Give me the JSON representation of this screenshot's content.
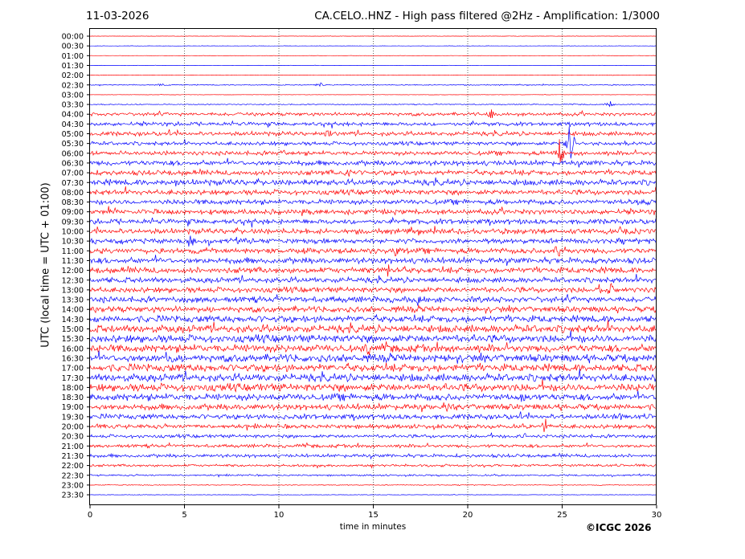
{
  "header": {
    "date": "11-03-2026",
    "title": "CA.CELO..HNZ - High pass filtered @2Hz - Amplification: 1/3000"
  },
  "footer": {
    "credit": "©ICGC 2026"
  },
  "chart_data": {
    "type": "line",
    "title": "CA.CELO..HNZ - High pass filtered @2Hz - Amplification: 1/3000",
    "xlabel": "time in minutes",
    "ylabel": "UTC (local time = UTC + 01:00)",
    "xlim": [
      0,
      30
    ],
    "xticks": [
      0,
      5,
      10,
      15,
      20,
      25,
      30
    ],
    "vertical_gridlines": [
      5,
      10,
      15,
      20,
      25
    ],
    "row_labels": [
      "00:00",
      "00:30",
      "01:00",
      "01:30",
      "02:00",
      "02:30",
      "03:00",
      "03:30",
      "04:00",
      "04:30",
      "05:00",
      "05:30",
      "06:00",
      "06:30",
      "07:00",
      "07:30",
      "08:00",
      "08:30",
      "09:00",
      "09:30",
      "10:00",
      "10:30",
      "11:00",
      "11:30",
      "12:00",
      "12:30",
      "13:00",
      "13:30",
      "14:00",
      "14:30",
      "15:00",
      "15:30",
      "16:00",
      "16:30",
      "17:00",
      "17:30",
      "18:00",
      "18:30",
      "19:00",
      "19:30",
      "20:00",
      "20:30",
      "21:00",
      "21:30",
      "22:00",
      "22:30",
      "23:00",
      "23:30"
    ],
    "row_colors": [
      "#ff0000",
      "#0000ff"
    ],
    "trace_amplitude": [
      0.2,
      0.2,
      0.2,
      0.2,
      0.2,
      0.6,
      0.2,
      0.6,
      2.0,
      2.2,
      2.5,
      2.2,
      2.5,
      3.0,
      3.0,
      3.5,
      3.0,
      3.0,
      3.0,
      3.0,
      3.2,
      3.0,
      3.2,
      3.5,
      3.5,
      3.2,
      3.2,
      3.5,
      3.5,
      4.0,
      4.5,
      4.5,
      4.5,
      4.5,
      4.5,
      4.5,
      4.5,
      4.0,
      3.5,
      3.0,
      2.5,
      2.0,
      2.0,
      2.0,
      1.5,
      1.0,
      0.5,
      0.3
    ],
    "events": [
      {
        "row": "02:30",
        "minute": 3.8,
        "amplitude": 3
      },
      {
        "row": "02:30",
        "minute": 12.2,
        "amplitude": 5
      },
      {
        "row": "03:30",
        "minute": 27.5,
        "amplitude": 6
      },
      {
        "row": "04:00",
        "minute": 21.3,
        "amplitude": 14
      },
      {
        "row": "05:00",
        "minute": 12.6,
        "amplitude": 8
      },
      {
        "row": "05:30",
        "minute": 25.4,
        "amplitude": 40
      },
      {
        "row": "06:00",
        "minute": 24.9,
        "amplitude": 24
      },
      {
        "row": "06:00",
        "minute": 10.2,
        "amplitude": 6
      },
      {
        "row": "07:00",
        "minute": 13.6,
        "amplitude": 14
      },
      {
        "row": "07:30",
        "minute": 12.0,
        "amplitude": 10
      },
      {
        "row": "07:30",
        "minute": 4.5,
        "amplitude": 6
      },
      {
        "row": "10:30",
        "minute": 5.3,
        "amplitude": 14
      },
      {
        "row": "11:00",
        "minute": 24.8,
        "amplitude": 20
      },
      {
        "row": "11:00",
        "minute": 16.2,
        "amplitude": 12
      },
      {
        "row": "12:00",
        "minute": 15.8,
        "amplitude": 10
      },
      {
        "row": "13:00",
        "minute": 27.6,
        "amplitude": 14
      },
      {
        "row": "13:30",
        "minute": 17.4,
        "amplitude": 10
      },
      {
        "row": "16:00",
        "minute": 14.8,
        "amplitude": 12
      },
      {
        "row": "16:30",
        "minute": 4.0,
        "amplitude": 10
      },
      {
        "row": "18:30",
        "minute": 22.9,
        "amplitude": 10
      },
      {
        "row": "19:00",
        "minute": 18.8,
        "amplitude": 14
      },
      {
        "row": "19:30",
        "minute": 10.3,
        "amplitude": 6
      },
      {
        "row": "20:00",
        "minute": 24.1,
        "amplitude": 14
      },
      {
        "row": "20:30",
        "minute": 23.0,
        "amplitude": 5
      },
      {
        "row": "19:30",
        "minute": 28.1,
        "amplitude": 8
      }
    ]
  }
}
